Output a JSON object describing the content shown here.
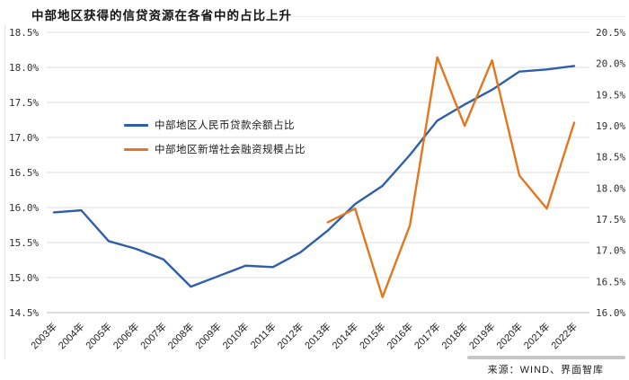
{
  "title": "中部地区获得的信贷资源在各省中的占比上升",
  "source": "来源：WIND、界面智库",
  "legend": {
    "series1_label": "中部地区人民币贷款余额占比",
    "series2_label": "中部地区新增社会融资规模占比"
  },
  "colors": {
    "series1": "#2E5FA8",
    "series2": "#E2771F",
    "gridline": "#DCDCDC",
    "baseline": "#BDBDBD",
    "axis_text": "#303030",
    "tick_text": "#1f1f1f"
  },
  "chart_data": {
    "type": "line",
    "title": "中部地区获得的信贷资源在各省中的占比上升",
    "categories": [
      "2003年",
      "2004年",
      "2005年",
      "2006年",
      "2007年",
      "2008年",
      "2009年",
      "2010年",
      "2011年",
      "2012年",
      "2013年",
      "2014年",
      "2015年",
      "2016年",
      "2017年",
      "2018年",
      "2019年",
      "2020年",
      "2021年",
      "2022年"
    ],
    "series": [
      {
        "name": "中部地区人民币贷款余额占比",
        "axis": "left",
        "color": "#2E5FA8",
        "values": [
          15.93,
          15.96,
          15.52,
          15.41,
          15.26,
          14.87,
          15.02,
          15.17,
          15.15,
          15.36,
          15.67,
          16.05,
          16.31,
          16.75,
          17.24,
          17.47,
          17.68,
          17.94,
          17.97,
          18.02
        ]
      },
      {
        "name": "中部地区新增社会融资规模占比",
        "axis": "right",
        "color": "#E2771F",
        "values": [
          null,
          null,
          null,
          null,
          null,
          null,
          null,
          null,
          null,
          null,
          17.45,
          17.67,
          16.25,
          17.4,
          20.1,
          19.0,
          20.05,
          18.2,
          17.67,
          19.05
        ]
      }
    ],
    "left_axis": {
      "min": 14.5,
      "max": 18.5,
      "step": 0.5,
      "labels": [
        "18.5%",
        "18.0%",
        "17.5%",
        "17.0%",
        "16.5%",
        "16.0%",
        "15.5%",
        "15.0%",
        "14.5%"
      ]
    },
    "right_axis": {
      "min": 16.0,
      "max": 20.5,
      "step": 0.5,
      "labels": [
        "20.5%",
        "20.0%",
        "19.5%",
        "19.0%",
        "18.5%",
        "18.0%",
        "17.5%",
        "17.0%",
        "16.5%",
        "16.0%"
      ]
    },
    "grid": true,
    "legend_position": "inside-upper-left"
  }
}
